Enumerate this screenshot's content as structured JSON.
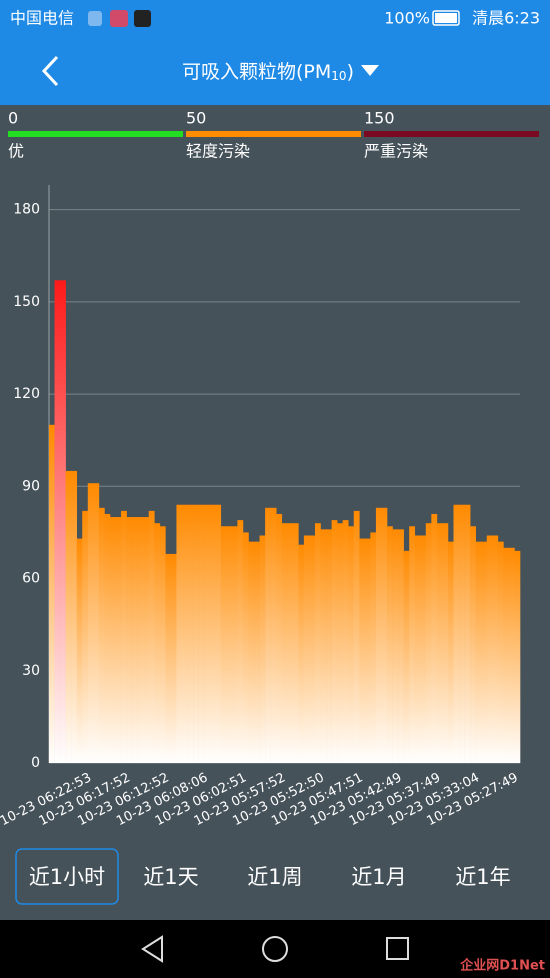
{
  "status_bar": {
    "carrier": "中国电信",
    "battery": "100%",
    "time": "清晨6:23"
  },
  "header": {
    "title": "可吸入颗粒物(PM",
    "title_sub": "10",
    "title_end": ")"
  },
  "legend_scale": [
    {
      "value": 0,
      "label": "优",
      "color": "#22dd22"
    },
    {
      "value": 50,
      "label": "轻度污染",
      "color": "#ff8c00"
    },
    {
      "value": 150,
      "label": "严重污染",
      "color": "#7a0a22"
    }
  ],
  "chart_data": {
    "type": "bar",
    "color": "#ff8a00",
    "alert_color": "#ff1a1a",
    "ylim": [
      0,
      188
    ],
    "yticks": [
      0,
      30,
      60,
      90,
      120,
      150,
      180
    ],
    "grid": true,
    "categories": [
      null,
      null,
      null,
      null,
      null,
      null,
      null,
      "10-23 06:22:53",
      null,
      null,
      null,
      null,
      null,
      null,
      "10-23 06:17:52",
      null,
      null,
      null,
      null,
      null,
      null,
      "10-23 06:12:52",
      null,
      null,
      null,
      null,
      null,
      null,
      "10-23 06:08:06",
      null,
      null,
      null,
      null,
      null,
      null,
      "10-23 06:02:51",
      null,
      null,
      null,
      null,
      null,
      null,
      "10-23 05:57:52",
      null,
      null,
      null,
      null,
      null,
      null,
      "10-23 05:52:50",
      null,
      null,
      null,
      null,
      null,
      null,
      "10-23 05:47:51",
      null,
      null,
      null,
      null,
      null,
      null,
      "10-23 05:42:49",
      null,
      null,
      null,
      null,
      null,
      null,
      "10-23 05:37:49",
      null,
      null,
      null,
      null,
      null,
      null,
      "10-23 05:33:04",
      null,
      null,
      null,
      null,
      null,
      null,
      "10-23 05:27:49"
    ],
    "values": [
      110,
      157,
      157,
      95,
      95,
      73,
      82,
      91,
      91,
      83,
      81,
      80,
      80,
      82,
      80,
      80,
      80,
      80,
      82,
      78,
      77,
      68,
      68,
      84,
      84,
      84,
      84,
      84,
      84,
      84,
      84,
      77,
      77,
      77,
      79,
      75,
      72,
      72,
      74,
      83,
      83,
      81,
      78,
      78,
      78,
      71,
      74,
      74,
      78,
      76,
      76,
      79,
      78,
      79,
      77,
      82,
      73,
      73,
      75,
      83,
      83,
      77,
      76,
      76,
      69,
      77,
      74,
      74,
      78,
      81,
      78,
      78,
      72,
      84,
      84,
      84,
      77,
      72,
      72,
      74,
      74,
      72,
      70,
      70,
      69
    ]
  },
  "tabs": [
    "近1小时",
    "近1天",
    "近1周",
    "近1月",
    "近1年"
  ],
  "watermark": "企业网D1Net"
}
